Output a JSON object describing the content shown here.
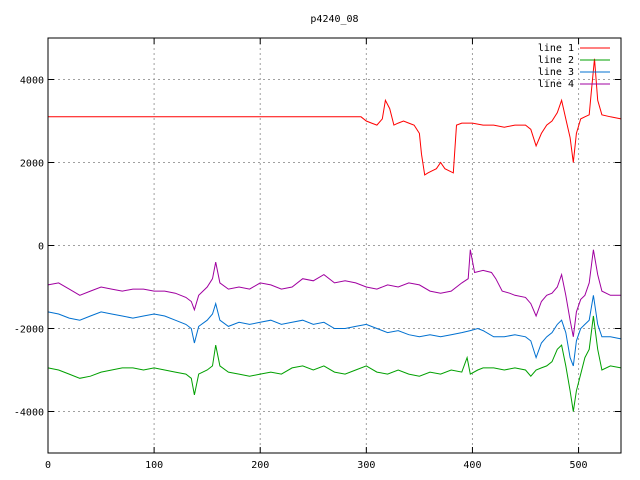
{
  "chart_data": {
    "type": "line",
    "title": "p4240_08",
    "xlabel": "",
    "ylabel": "",
    "xlim": [
      0,
      540
    ],
    "ylim": [
      -5000,
      5000
    ],
    "xticks": [
      0,
      100,
      200,
      300,
      400,
      500
    ],
    "yticks": [
      -4000,
      -2000,
      0,
      2000,
      4000
    ],
    "grid": true,
    "legend_position": "top-right",
    "series": [
      {
        "name": "line 1",
        "color": "#ff0000",
        "points": [
          [
            0,
            3100
          ],
          [
            100,
            3100
          ],
          [
            200,
            3100
          ],
          [
            295,
            3100
          ],
          [
            300,
            3000
          ],
          [
            305,
            2950
          ],
          [
            310,
            2900
          ],
          [
            315,
            3050
          ],
          [
            318,
            3500
          ],
          [
            322,
            3300
          ],
          [
            326,
            2900
          ],
          [
            330,
            2950
          ],
          [
            335,
            3000
          ],
          [
            340,
            2950
          ],
          [
            345,
            2900
          ],
          [
            350,
            2700
          ],
          [
            352,
            2200
          ],
          [
            355,
            1700
          ],
          [
            358,
            1750
          ],
          [
            362,
            1800
          ],
          [
            366,
            1850
          ],
          [
            370,
            2000
          ],
          [
            374,
            1850
          ],
          [
            378,
            1800
          ],
          [
            382,
            1750
          ],
          [
            385,
            2900
          ],
          [
            390,
            2950
          ],
          [
            400,
            2950
          ],
          [
            410,
            2900
          ],
          [
            420,
            2900
          ],
          [
            430,
            2850
          ],
          [
            440,
            2900
          ],
          [
            450,
            2900
          ],
          [
            455,
            2800
          ],
          [
            460,
            2400
          ],
          [
            465,
            2700
          ],
          [
            470,
            2900
          ],
          [
            475,
            3000
          ],
          [
            480,
            3200
          ],
          [
            484,
            3500
          ],
          [
            488,
            3050
          ],
          [
            492,
            2600
          ],
          [
            495,
            2000
          ],
          [
            498,
            2700
          ],
          [
            502,
            3050
          ],
          [
            506,
            3100
          ],
          [
            510,
            3150
          ],
          [
            512,
            3700
          ],
          [
            515,
            4500
          ],
          [
            518,
            3500
          ],
          [
            522,
            3150
          ],
          [
            530,
            3100
          ],
          [
            540,
            3050
          ]
        ]
      },
      {
        "name": "line 2",
        "color": "#00a000",
        "points": [
          [
            0,
            -2950
          ],
          [
            10,
            -3000
          ],
          [
            20,
            -3100
          ],
          [
            30,
            -3200
          ],
          [
            40,
            -3150
          ],
          [
            50,
            -3050
          ],
          [
            60,
            -3000
          ],
          [
            70,
            -2950
          ],
          [
            80,
            -2950
          ],
          [
            90,
            -3000
          ],
          [
            100,
            -2950
          ],
          [
            110,
            -3000
          ],
          [
            120,
            -3050
          ],
          [
            130,
            -3100
          ],
          [
            135,
            -3200
          ],
          [
            138,
            -3600
          ],
          [
            142,
            -3100
          ],
          [
            150,
            -3000
          ],
          [
            155,
            -2900
          ],
          [
            158,
            -2400
          ],
          [
            162,
            -2900
          ],
          [
            170,
            -3050
          ],
          [
            180,
            -3100
          ],
          [
            190,
            -3150
          ],
          [
            200,
            -3100
          ],
          [
            210,
            -3050
          ],
          [
            220,
            -3100
          ],
          [
            230,
            -2950
          ],
          [
            240,
            -2900
          ],
          [
            250,
            -3000
          ],
          [
            260,
            -2900
          ],
          [
            270,
            -3050
          ],
          [
            280,
            -3100
          ],
          [
            290,
            -3000
          ],
          [
            300,
            -2900
          ],
          [
            310,
            -3050
          ],
          [
            320,
            -3100
          ],
          [
            330,
            -3000
          ],
          [
            340,
            -3100
          ],
          [
            350,
            -3150
          ],
          [
            360,
            -3050
          ],
          [
            370,
            -3100
          ],
          [
            380,
            -3000
          ],
          [
            390,
            -3050
          ],
          [
            395,
            -2700
          ],
          [
            398,
            -3100
          ],
          [
            405,
            -3000
          ],
          [
            410,
            -2950
          ],
          [
            420,
            -2950
          ],
          [
            430,
            -3000
          ],
          [
            440,
            -2950
          ],
          [
            450,
            -3000
          ],
          [
            455,
            -3150
          ],
          [
            460,
            -3000
          ],
          [
            465,
            -2950
          ],
          [
            470,
            -2900
          ],
          [
            475,
            -2800
          ],
          [
            480,
            -2500
          ],
          [
            484,
            -2400
          ],
          [
            488,
            -2900
          ],
          [
            492,
            -3500
          ],
          [
            495,
            -4000
          ],
          [
            498,
            -3500
          ],
          [
            502,
            -3100
          ],
          [
            506,
            -2700
          ],
          [
            510,
            -2500
          ],
          [
            514,
            -1700
          ],
          [
            518,
            -2500
          ],
          [
            522,
            -3000
          ],
          [
            530,
            -2900
          ],
          [
            540,
            -2950
          ]
        ]
      },
      {
        "name": "line 3",
        "color": "#0070d0",
        "points": [
          [
            0,
            -1600
          ],
          [
            10,
            -1650
          ],
          [
            20,
            -1750
          ],
          [
            30,
            -1800
          ],
          [
            40,
            -1700
          ],
          [
            50,
            -1600
          ],
          [
            60,
            -1650
          ],
          [
            70,
            -1700
          ],
          [
            80,
            -1750
          ],
          [
            90,
            -1700
          ],
          [
            100,
            -1650
          ],
          [
            110,
            -1700
          ],
          [
            120,
            -1800
          ],
          [
            130,
            -1900
          ],
          [
            135,
            -2000
          ],
          [
            138,
            -2350
          ],
          [
            142,
            -1950
          ],
          [
            150,
            -1800
          ],
          [
            155,
            -1650
          ],
          [
            158,
            -1400
          ],
          [
            162,
            -1800
          ],
          [
            170,
            -1950
          ],
          [
            180,
            -1850
          ],
          [
            190,
            -1900
          ],
          [
            200,
            -1850
          ],
          [
            210,
            -1800
          ],
          [
            220,
            -1900
          ],
          [
            230,
            -1850
          ],
          [
            240,
            -1800
          ],
          [
            250,
            -1900
          ],
          [
            260,
            -1850
          ],
          [
            270,
            -2000
          ],
          [
            280,
            -2000
          ],
          [
            290,
            -1950
          ],
          [
            300,
            -1900
          ],
          [
            310,
            -2000
          ],
          [
            320,
            -2100
          ],
          [
            330,
            -2050
          ],
          [
            340,
            -2150
          ],
          [
            350,
            -2200
          ],
          [
            360,
            -2150
          ],
          [
            370,
            -2200
          ],
          [
            380,
            -2150
          ],
          [
            390,
            -2100
          ],
          [
            398,
            -2050
          ],
          [
            405,
            -2000
          ],
          [
            410,
            -2050
          ],
          [
            420,
            -2200
          ],
          [
            430,
            -2200
          ],
          [
            440,
            -2150
          ],
          [
            450,
            -2200
          ],
          [
            455,
            -2300
          ],
          [
            460,
            -2700
          ],
          [
            465,
            -2350
          ],
          [
            470,
            -2200
          ],
          [
            475,
            -2100
          ],
          [
            480,
            -1900
          ],
          [
            484,
            -1800
          ],
          [
            488,
            -2100
          ],
          [
            492,
            -2700
          ],
          [
            495,
            -2900
          ],
          [
            498,
            -2300
          ],
          [
            502,
            -2000
          ],
          [
            506,
            -1900
          ],
          [
            510,
            -1800
          ],
          [
            514,
            -1200
          ],
          [
            518,
            -1900
          ],
          [
            522,
            -2200
          ],
          [
            530,
            -2200
          ],
          [
            540,
            -2250
          ]
        ]
      },
      {
        "name": "line 4",
        "color": "#a000a0",
        "points": [
          [
            0,
            -950
          ],
          [
            10,
            -900
          ],
          [
            20,
            -1050
          ],
          [
            30,
            -1200
          ],
          [
            40,
            -1100
          ],
          [
            50,
            -1000
          ],
          [
            60,
            -1050
          ],
          [
            70,
            -1100
          ],
          [
            80,
            -1050
          ],
          [
            90,
            -1050
          ],
          [
            100,
            -1100
          ],
          [
            110,
            -1100
          ],
          [
            120,
            -1150
          ],
          [
            130,
            -1250
          ],
          [
            135,
            -1350
          ],
          [
            138,
            -1550
          ],
          [
            142,
            -1200
          ],
          [
            150,
            -1000
          ],
          [
            155,
            -800
          ],
          [
            158,
            -400
          ],
          [
            162,
            -900
          ],
          [
            170,
            -1050
          ],
          [
            180,
            -1000
          ],
          [
            190,
            -1050
          ],
          [
            200,
            -900
          ],
          [
            210,
            -950
          ],
          [
            220,
            -1050
          ],
          [
            230,
            -1000
          ],
          [
            240,
            -800
          ],
          [
            250,
            -850
          ],
          [
            260,
            -700
          ],
          [
            270,
            -900
          ],
          [
            280,
            -850
          ],
          [
            290,
            -900
          ],
          [
            300,
            -1000
          ],
          [
            310,
            -1050
          ],
          [
            320,
            -950
          ],
          [
            330,
            -1000
          ],
          [
            340,
            -900
          ],
          [
            350,
            -950
          ],
          [
            360,
            -1100
          ],
          [
            370,
            -1150
          ],
          [
            380,
            -1100
          ],
          [
            390,
            -900
          ],
          [
            396,
            -800
          ],
          [
            398,
            -100
          ],
          [
            402,
            -650
          ],
          [
            410,
            -600
          ],
          [
            418,
            -650
          ],
          [
            422,
            -800
          ],
          [
            428,
            -1100
          ],
          [
            435,
            -1150
          ],
          [
            440,
            -1200
          ],
          [
            450,
            -1250
          ],
          [
            455,
            -1400
          ],
          [
            460,
            -1700
          ],
          [
            465,
            -1350
          ],
          [
            470,
            -1200
          ],
          [
            475,
            -1150
          ],
          [
            480,
            -1000
          ],
          [
            484,
            -700
          ],
          [
            488,
            -1200
          ],
          [
            492,
            -1800
          ],
          [
            495,
            -2200
          ],
          [
            498,
            -1600
          ],
          [
            502,
            -1300
          ],
          [
            506,
            -1200
          ],
          [
            510,
            -900
          ],
          [
            514,
            -100
          ],
          [
            518,
            -700
          ],
          [
            522,
            -1100
          ],
          [
            530,
            -1200
          ],
          [
            540,
            -1200
          ]
        ]
      }
    ]
  }
}
